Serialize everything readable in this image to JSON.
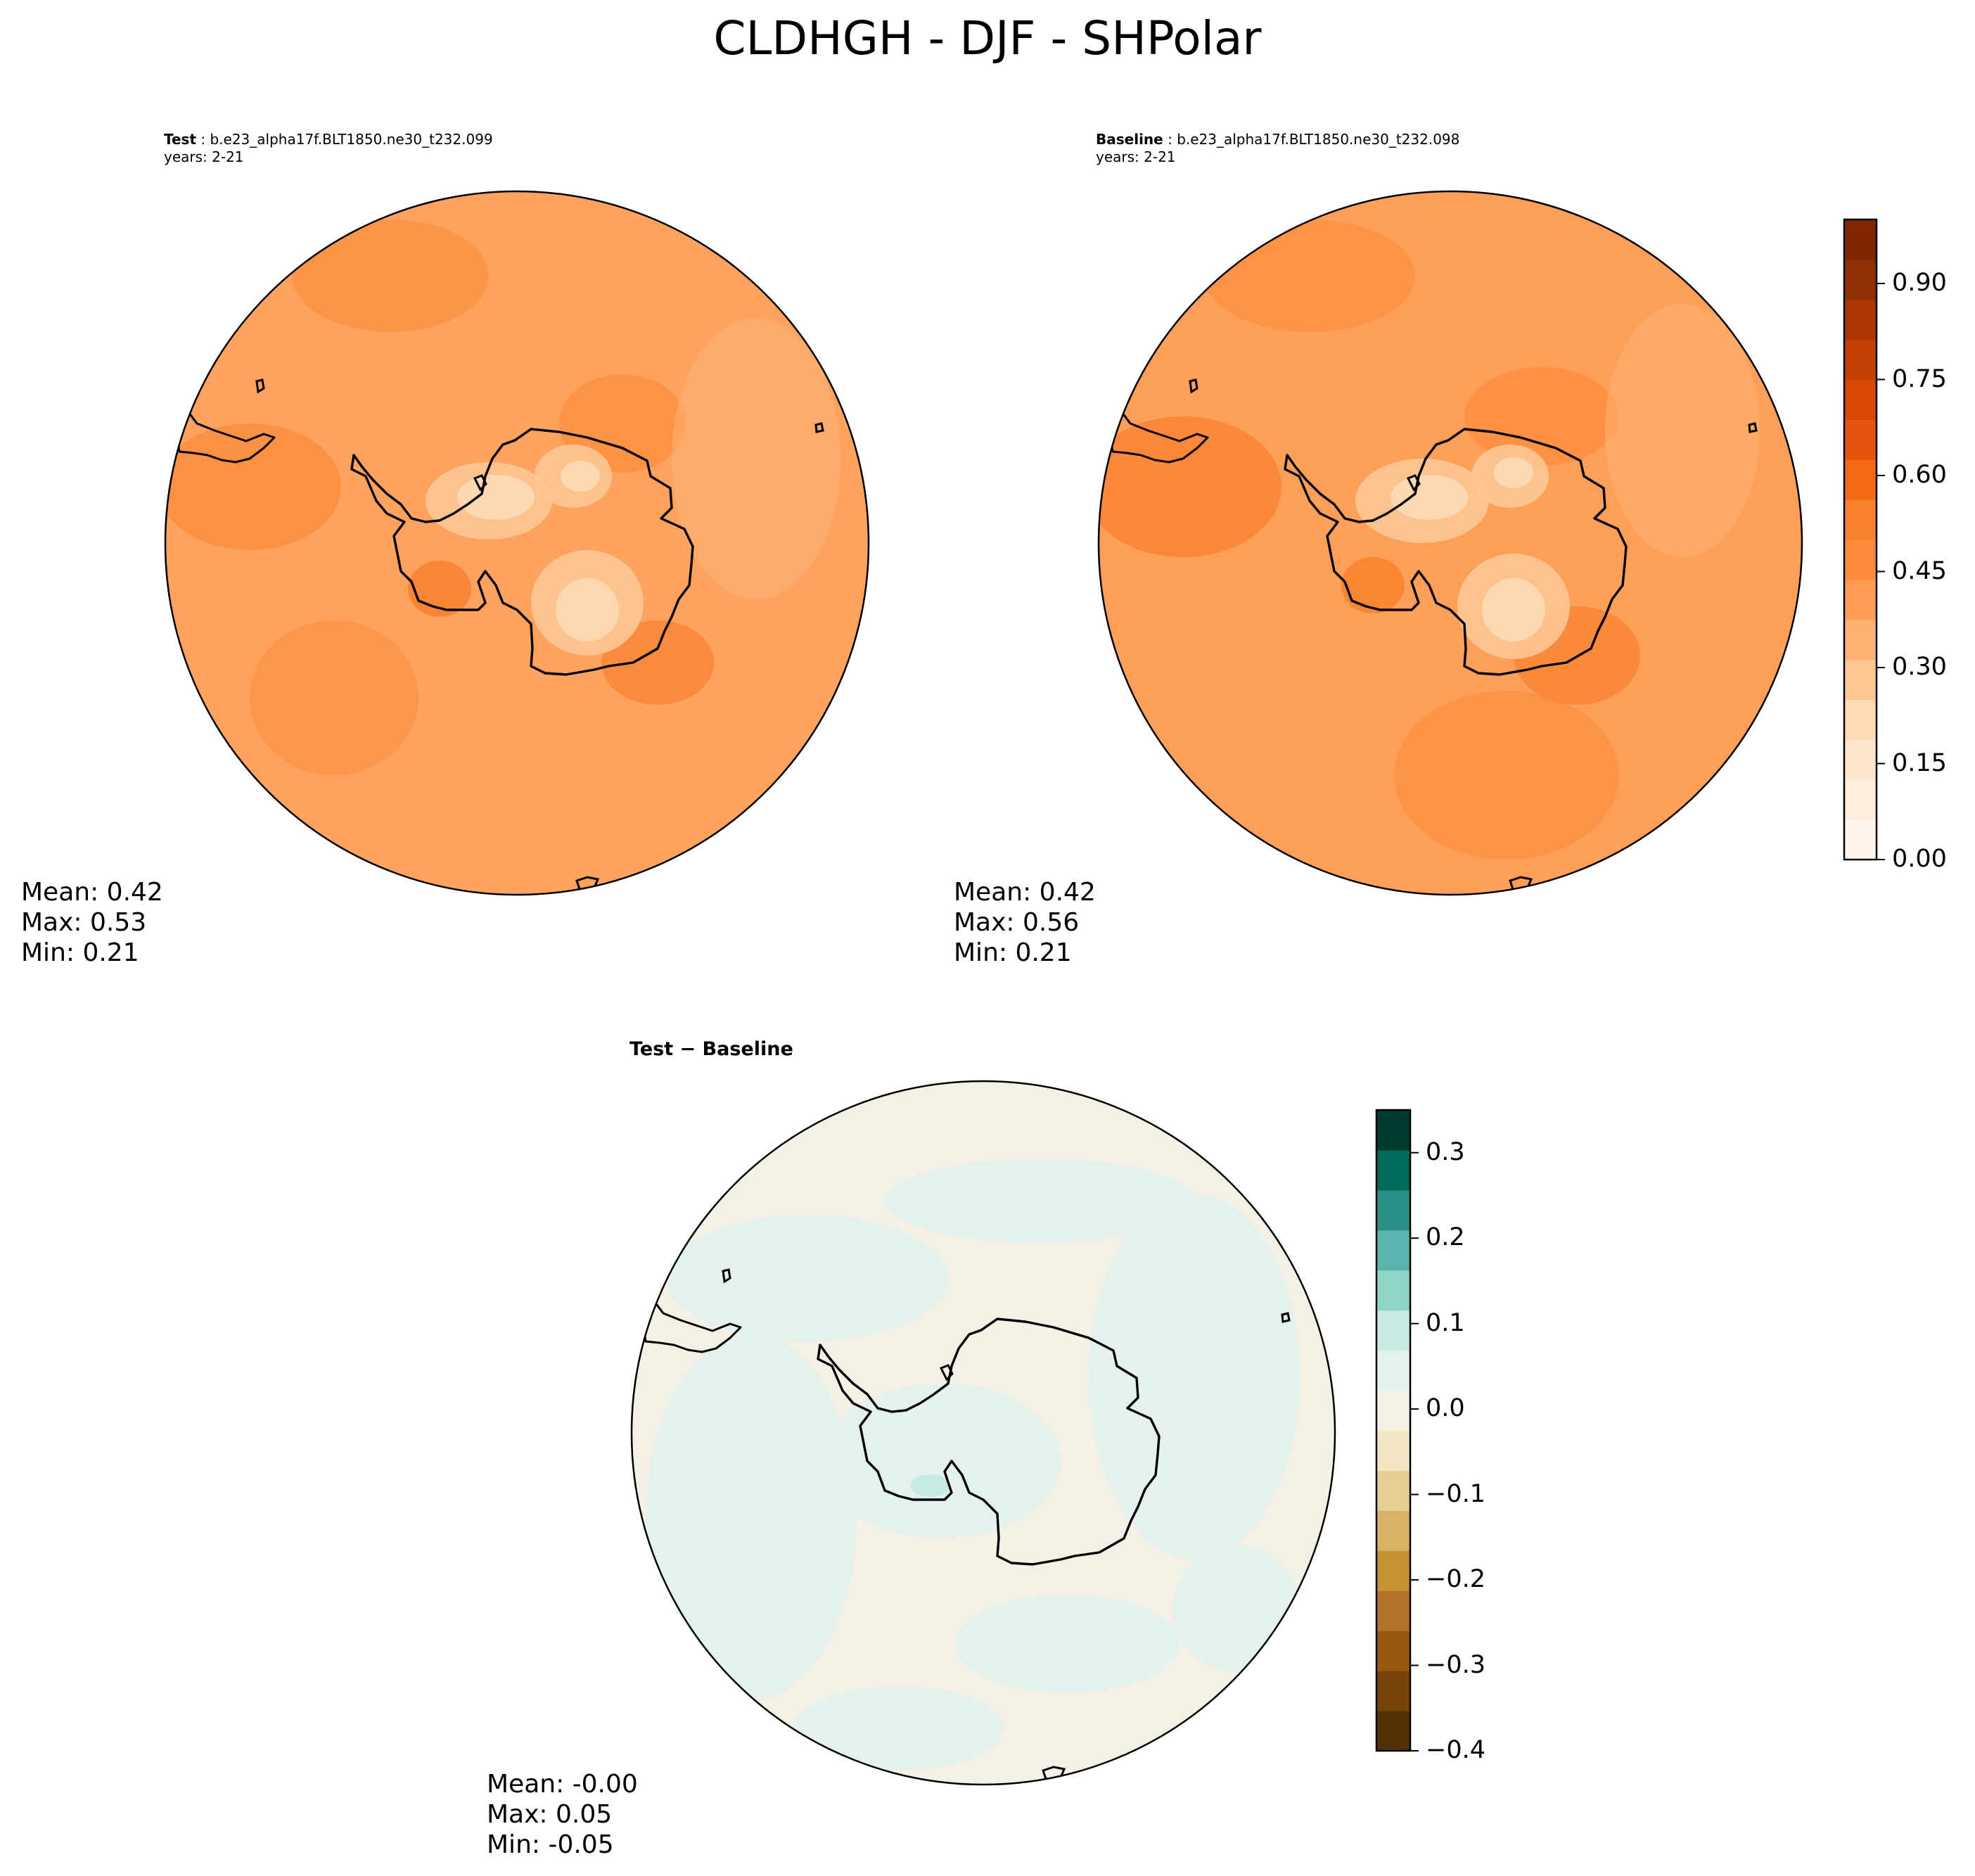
{
  "title": "CLDHGH - DJF - SHPolar",
  "panels": [
    {
      "id": "test",
      "label": "Test",
      "case": "b.e23_alpha17f.BLT1850.ne30_t232.099",
      "years": "years: 2-21",
      "stats": {
        "mean": "Mean:  0.42",
        "max": "Max:  0.53",
        "min": "Min:  0.21"
      }
    },
    {
      "id": "baseline",
      "label": "Baseline",
      "case": "b.e23_alpha17f.BLT1850.ne30_t232.098",
      "years": "years: 2-21",
      "stats": {
        "mean": "Mean:  0.42",
        "max": "Max:  0.56",
        "min": "Min:  0.21"
      }
    },
    {
      "id": "difference",
      "label": "Test − Baseline",
      "stats": {
        "mean": "Mean: -0.00",
        "max": "Max:  0.05",
        "min": "Min: -0.05"
      }
    }
  ],
  "colorbars": {
    "main": {
      "ticks": [
        "0.00",
        "0.15",
        "0.30",
        "0.45",
        "0.60",
        "0.75",
        "0.90"
      ],
      "tick_values": [
        0,
        0.15,
        0.3,
        0.45,
        0.6,
        0.75,
        0.9
      ],
      "range": [
        0,
        1
      ],
      "colors": [
        "#fff5eb",
        "#feeddc",
        "#fee6ce",
        "#fdd9b4",
        "#fdc794",
        "#fdb272",
        "#fd9d53",
        "#fd8c3b",
        "#f9802d",
        "#f16913",
        "#e6550d",
        "#d94801",
        "#c34002",
        "#ad3803",
        "#8f3004",
        "#7f2704"
      ]
    },
    "diff": {
      "ticks": [
        "0.3",
        "0.2",
        "0.1",
        "0.0",
        "−0.1",
        "−0.2",
        "−0.3",
        "−0.4"
      ],
      "tick_values": [
        0.3,
        0.2,
        0.1,
        0.0,
        -0.1,
        -0.2,
        -0.3,
        -0.4
      ],
      "range": [
        -0.4,
        0.35
      ],
      "colors": [
        "#543005",
        "#774508",
        "#97590e",
        "#b37228",
        "#c6912f",
        "#d8b365",
        "#e7cf94",
        "#f3e6c5",
        "#f4f0e5",
        "#e4f1ee",
        "#c7eae5",
        "#91d5c9",
        "#5ab4ac",
        "#2c8f86",
        "#016c59",
        "#003c30"
      ]
    }
  },
  "fill_colors": {
    "test_ocean": "#fda35f",
    "baseline_ocean": "#fd9f59",
    "diff_base": "#f4f0e5",
    "diff_alt": "#e4f1ee",
    "diff_accent": "#c7eae5"
  }
}
